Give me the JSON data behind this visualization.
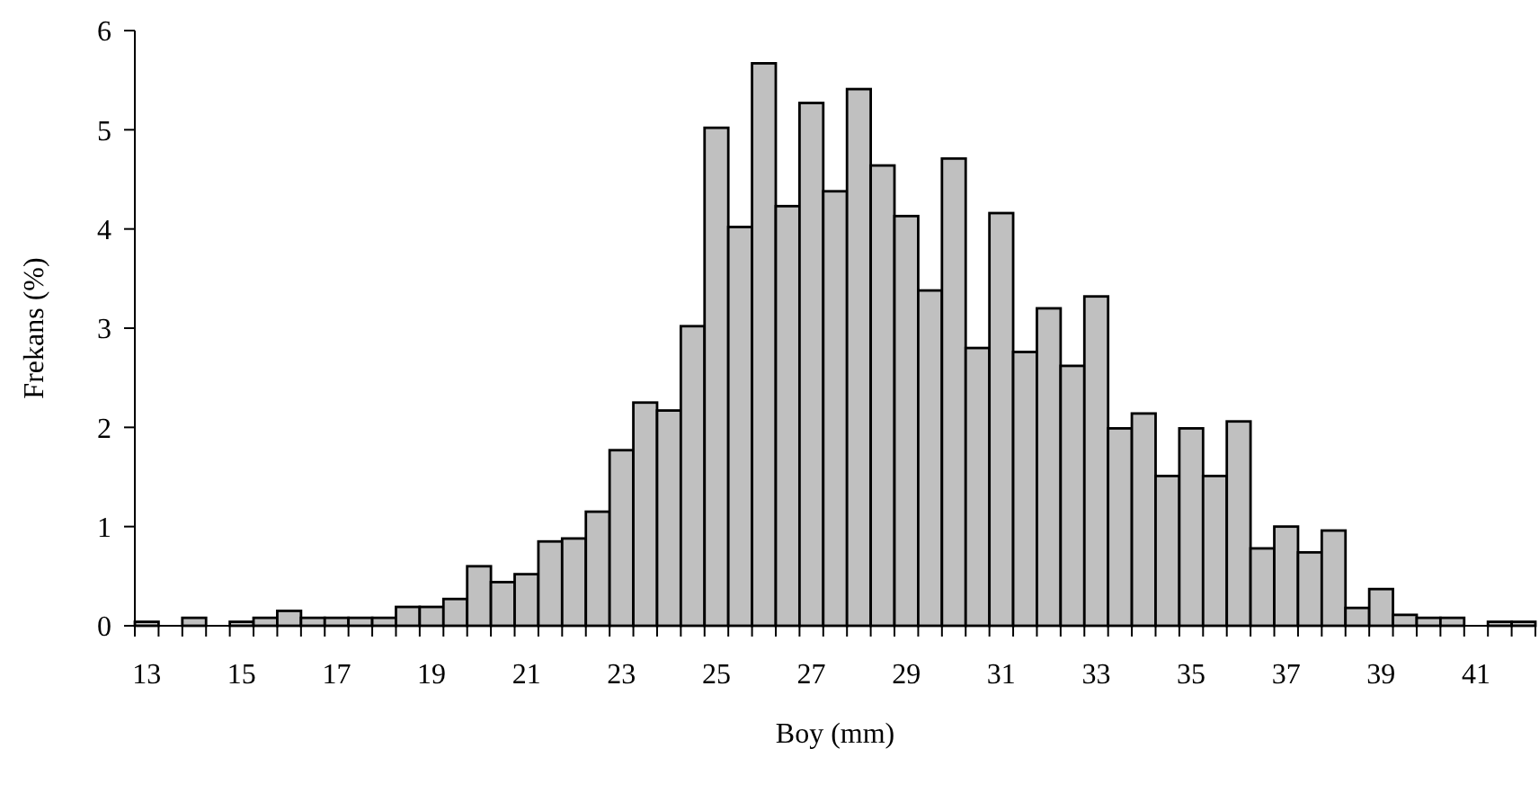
{
  "chart_data": {
    "type": "bar",
    "xlabel": "Boy (mm)",
    "ylabel": "Frekans (%)",
    "color": "#c0c0c0",
    "categories": [
      "13",
      null,
      null,
      null,
      "15",
      null,
      null,
      null,
      "17",
      null,
      null,
      null,
      "19",
      null,
      null,
      null,
      "21",
      null,
      null,
      null,
      "23",
      null,
      null,
      null,
      "25",
      null,
      null,
      null,
      "27",
      null,
      null,
      null,
      "29",
      null,
      null,
      null,
      "31",
      null,
      null,
      null,
      "33",
      null,
      null,
      null,
      "35",
      null,
      null,
      null,
      "37",
      null,
      null,
      null,
      "39",
      null,
      null,
      null,
      "41",
      null,
      null
    ],
    "values": [
      0.04,
      0,
      0.08,
      0,
      0.04,
      0.08,
      0.15,
      0.08,
      0.08,
      0.08,
      0.08,
      0.19,
      0.19,
      0.27,
      0.6,
      0.44,
      0.52,
      0.85,
      0.88,
      1.15,
      1.77,
      2.25,
      2.17,
      3.02,
      5.02,
      4.02,
      5.67,
      4.23,
      5.27,
      4.38,
      5.41,
      4.64,
      4.13,
      3.38,
      4.71,
      2.8,
      4.16,
      2.76,
      3.2,
      2.62,
      3.32,
      1.99,
      2.14,
      1.51,
      1.99,
      1.51,
      2.06,
      0.78,
      1.0,
      0.74,
      0.96,
      0.18,
      0.37,
      0.11,
      0.08,
      0.08,
      0,
      0.04,
      0.04
    ],
    "ylim": [
      0,
      6
    ],
    "yticks": [
      0,
      1,
      2,
      3,
      4,
      5,
      6
    ],
    "grid": false,
    "legend": false
  }
}
